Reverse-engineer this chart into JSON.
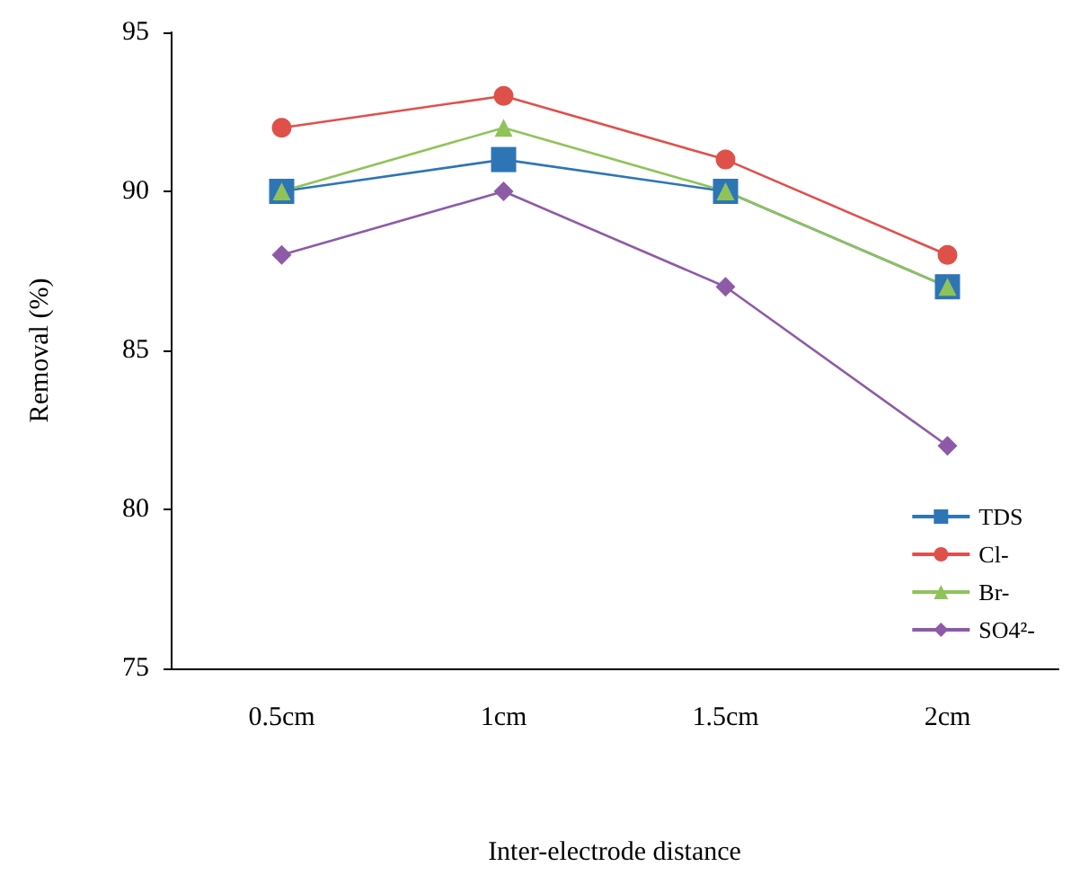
{
  "chart_data": {
    "type": "line",
    "xlabel": "Inter-electrode distance",
    "ylabel": "Removal (%)",
    "categories": [
      "0.5cm",
      "1cm",
      "1.5cm",
      "2cm"
    ],
    "series": [
      {
        "name": "TDS",
        "color": "#2e75b6",
        "marker": "square",
        "values": [
          90,
          91,
          90,
          87
        ]
      },
      {
        "name": "Cl-",
        "color": "#e0504a",
        "marker": "circle",
        "values": [
          92,
          93,
          91,
          88
        ]
      },
      {
        "name": "Br-",
        "color": "#8fc35a",
        "marker": "triangle",
        "values": [
          90,
          92,
          90,
          87
        ]
      },
      {
        "name": "SO4²-",
        "color": "#8e5aa8",
        "marker": "diamond",
        "values": [
          88,
          90,
          87,
          82
        ]
      }
    ],
    "ylim": [
      75,
      95
    ],
    "yticks": [
      75,
      80,
      85,
      90,
      95
    ],
    "grid": false,
    "legend": "bottom right",
    "line_style": "solid"
  }
}
